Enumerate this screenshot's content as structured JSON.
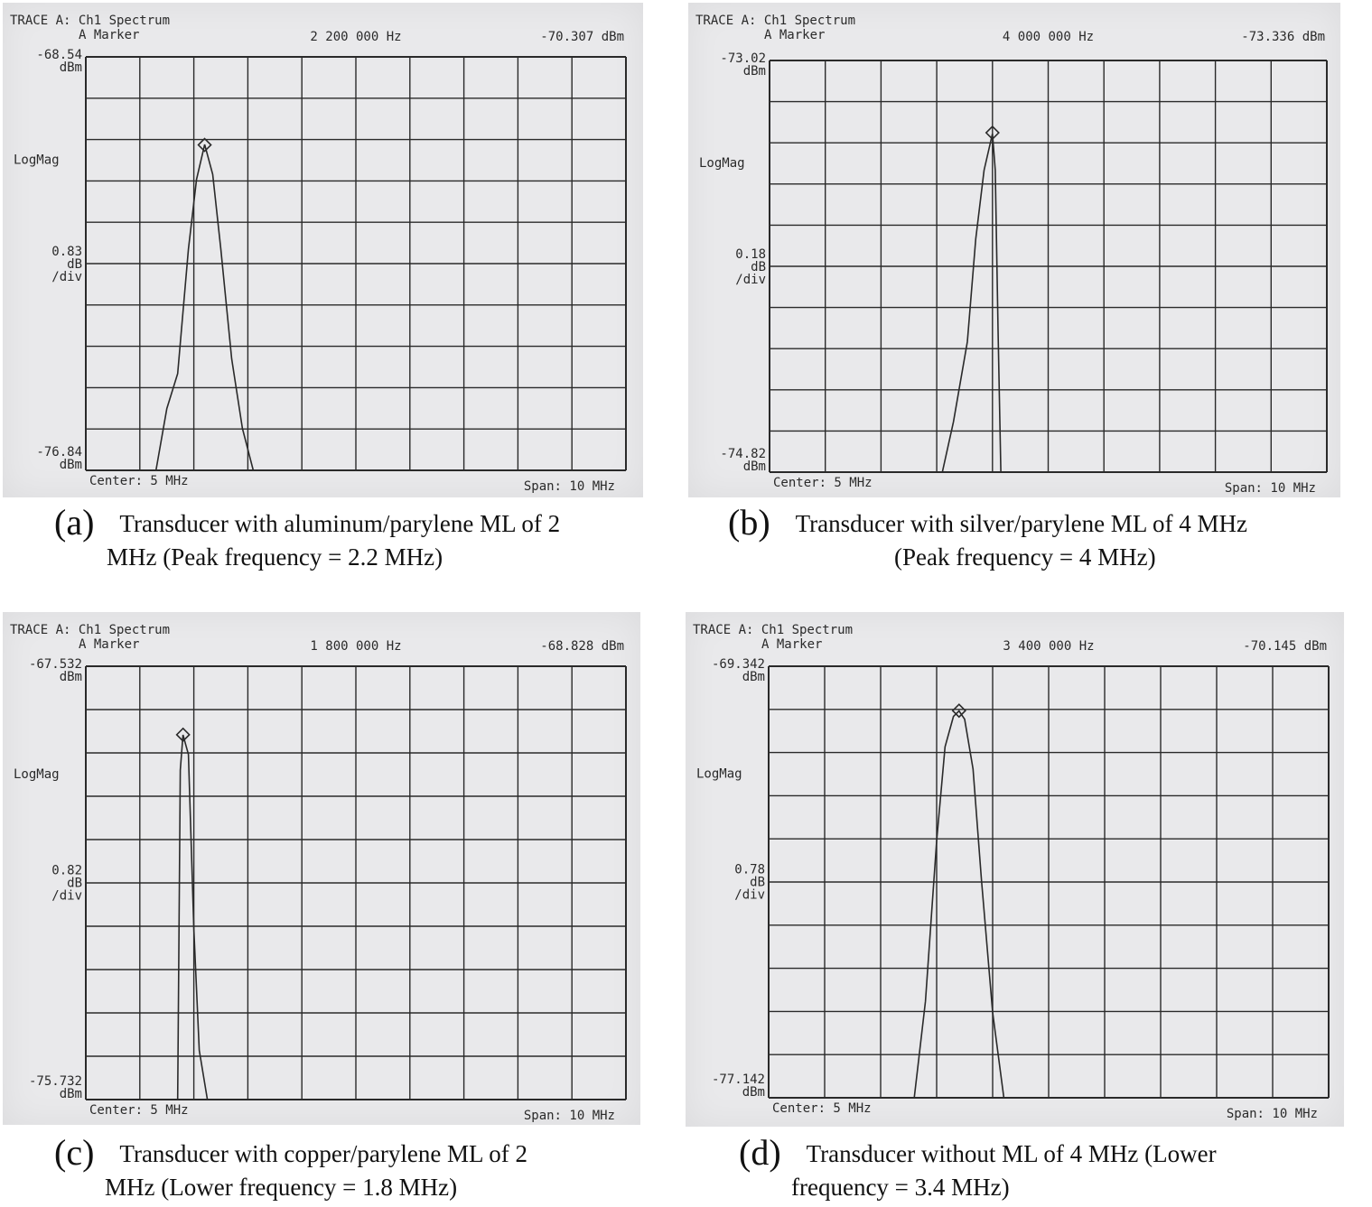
{
  "colors": {
    "paper": "#e9e9eb",
    "ink": "#2a2a2a",
    "caption": "#111111"
  },
  "chart_data": [
    {
      "type": "line",
      "screen": {
        "trace": "TRACE A: Ch1 Spectrum",
        "marker_label": "A Marker",
        "logmag": "LogMag",
        "center": "Center: 5 MHz",
        "span": "Span: 10 MHz"
      },
      "marker_freq_text": "2 200 000 Hz",
      "marker_level_text": "-70.307 dBm",
      "top_text": "-68.54",
      "top_unit": "dBm",
      "scale_text": "0.83",
      "scale_unit": "dB",
      "scale_div": "/div",
      "bottom_text": "-76.84",
      "bottom_unit": "dBm",
      "xlim_mhz": [
        0,
        10
      ],
      "ylim_dbm": [
        -76.84,
        -68.54
      ],
      "grid": true,
      "marker": {
        "x_mhz": 2.2,
        "y_dbm": -70.307
      },
      "series": [
        {
          "x_mhz": [
            1.3,
            1.5,
            1.7,
            1.9,
            2.05,
            2.2,
            2.35,
            2.5,
            2.7,
            2.9,
            3.1
          ],
          "y_dbm": [
            -76.84,
            -75.6,
            -74.9,
            -72.4,
            -71.0,
            -70.3,
            -70.9,
            -72.4,
            -74.6,
            -76.0,
            -76.84
          ]
        }
      ],
      "letter": "(a)",
      "caption_line1": "Transducer with aluminum/parylene ML of 2",
      "caption_line2": "MHz (Peak frequency = 2.2 MHz)"
    },
    {
      "type": "line",
      "screen": {
        "trace": "TRACE A: Ch1 Spectrum",
        "marker_label": "A Marker",
        "logmag": "LogMag",
        "center": "Center: 5 MHz",
        "span": "Span: 10 MHz"
      },
      "marker_freq_text": "4 000 000 Hz",
      "marker_level_text": "-73.336 dBm",
      "top_text": "-73.02",
      "top_unit": "dBm",
      "scale_text": "0.18",
      "scale_unit": "dB",
      "scale_div": "/div",
      "bottom_text": "-74.82",
      "bottom_unit": "dBm",
      "xlim_mhz": [
        0,
        10
      ],
      "ylim_dbm": [
        -74.82,
        -73.02
      ],
      "grid": true,
      "marker": {
        "x_mhz": 4.0,
        "y_dbm": -73.336
      },
      "series": [
        {
          "x_mhz": [
            3.1,
            3.3,
            3.55,
            3.7,
            3.85,
            4.0,
            4.05,
            4.1,
            4.15,
            4.3
          ],
          "y_dbm": [
            -74.82,
            -74.6,
            -74.25,
            -73.8,
            -73.5,
            -73.34,
            -73.5,
            -74.2,
            -74.82,
            -74.82
          ]
        }
      ],
      "letter": "(b)",
      "caption_line1": "Transducer with silver/parylene ML of 4 MHz",
      "caption_line2": "(Peak frequency = 4 MHz)"
    },
    {
      "type": "line",
      "screen": {
        "trace": "TRACE A: Ch1 Spectrum",
        "marker_label": "A Marker",
        "logmag": "LogMag",
        "center": "Center: 5 MHz",
        "span": "Span: 10 MHz"
      },
      "marker_freq_text": "1 800 000 Hz",
      "marker_level_text": "-68.828 dBm",
      "top_text": "-67.532",
      "top_unit": "dBm",
      "scale_text": "0.82",
      "scale_unit": "dB",
      "scale_div": "/div",
      "bottom_text": "-75.732",
      "bottom_unit": "dBm",
      "xlim_mhz": [
        0,
        10
      ],
      "ylim_dbm": [
        -75.732,
        -67.532
      ],
      "grid": true,
      "marker": {
        "x_mhz": 1.8,
        "y_dbm": -68.828
      },
      "series": [
        {
          "x_mhz": [
            1.7,
            1.75,
            1.8,
            1.9,
            2.0,
            2.1,
            2.25
          ],
          "y_dbm": [
            -75.732,
            -69.5,
            -68.83,
            -69.2,
            -72.5,
            -74.8,
            -75.732
          ]
        }
      ],
      "letter": "(c)",
      "caption_line1": "Transducer with copper/parylene ML of 2",
      "caption_line2": "MHz (Lower frequency = 1.8 MHz)"
    },
    {
      "type": "line",
      "screen": {
        "trace": "TRACE A: Ch1 Spectrum",
        "marker_label": "A Marker",
        "logmag": "LogMag",
        "center": "Center: 5 MHz",
        "span": "Span: 10 MHz"
      },
      "marker_freq_text": "3 400 000 Hz",
      "marker_level_text": "-70.145 dBm",
      "top_text": "-69.342",
      "top_unit": "dBm",
      "scale_text": "0.78",
      "scale_unit": "dB",
      "scale_div": "/div",
      "bottom_text": "-77.142",
      "bottom_unit": "dBm",
      "xlim_mhz": [
        0,
        10
      ],
      "ylim_dbm": [
        -77.142,
        -69.342
      ],
      "grid": true,
      "marker": {
        "x_mhz": 3.4,
        "y_dbm": -70.145
      },
      "series": [
        {
          "x_mhz": [
            2.6,
            2.8,
            3.0,
            3.15,
            3.3,
            3.4,
            3.5,
            3.65,
            3.8,
            4.0,
            4.2
          ],
          "y_dbm": [
            -77.142,
            -75.4,
            -72.5,
            -70.8,
            -70.25,
            -70.15,
            -70.3,
            -71.2,
            -73.2,
            -75.6,
            -77.142
          ]
        }
      ],
      "letter": "(d)",
      "caption_line1": "Transducer without ML of 4 MHz (Lower",
      "caption_line2": "frequency = 3.4 MHz)"
    }
  ]
}
